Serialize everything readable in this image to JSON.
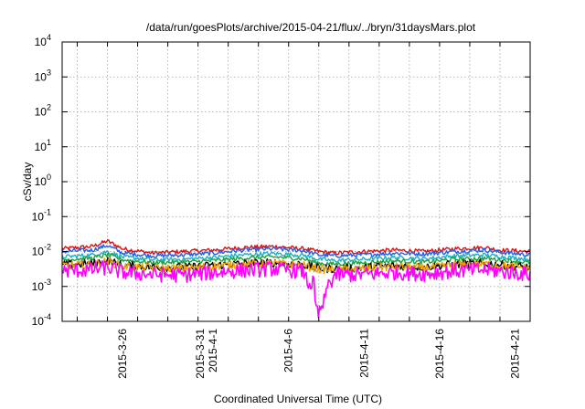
{
  "chart_data": {
    "type": "line",
    "title": "/data/run/goesPlots/archive/2015-04-21/flux/../bryn/31daysMars.plot",
    "xlabel": "Coordinated Universal Time (UTC)",
    "ylabel": "cSv/day",
    "yscale": "log",
    "ylim": [
      0.0001,
      10000
    ],
    "xlim": [
      "2015-03-22",
      "2015-04-22"
    ],
    "grid": true,
    "x_ticks": [
      "2015-3-26",
      "2015-3-31",
      "2015-4-1",
      "2015-4-6",
      "2015-4-11",
      "2015-4-16",
      "2015-4-21"
    ],
    "y_ticks": [
      {
        "value": 0.0001,
        "base": "10",
        "exp": "-4"
      },
      {
        "value": 0.001,
        "base": "10",
        "exp": "-3"
      },
      {
        "value": 0.01,
        "base": "10",
        "exp": "-2"
      },
      {
        "value": 0.1,
        "base": "10",
        "exp": "-1"
      },
      {
        "value": 1,
        "base": "10",
        "exp": "0"
      },
      {
        "value": 10,
        "base": "10",
        "exp": "1"
      },
      {
        "value": 100,
        "base": "10",
        "exp": "2"
      },
      {
        "value": 1000,
        "base": "10",
        "exp": "3"
      },
      {
        "value": 10000,
        "base": "10",
        "exp": "4"
      }
    ],
    "x": [
      "2015-03-22",
      "2015-03-24",
      "2015-03-25",
      "2015-03-26",
      "2015-03-28",
      "2015-03-30",
      "2015-04-01",
      "2015-04-03",
      "2015-04-05",
      "2015-04-07",
      "2015-04-08",
      "2015-04-09",
      "2015-04-11",
      "2015-04-13",
      "2015-04-15",
      "2015-04-17",
      "2015-04-19",
      "2015-04-20",
      "2015-04-22"
    ],
    "series": [
      {
        "color": "#e01010",
        "values": [
          0.012,
          0.014,
          0.02,
          0.012,
          0.009,
          0.01,
          0.011,
          0.013,
          0.014,
          0.012,
          0.01,
          0.009,
          0.01,
          0.011,
          0.01,
          0.012,
          0.013,
          0.011,
          0.01
        ]
      },
      {
        "color": "#2060f0",
        "values": [
          0.01,
          0.011,
          0.015,
          0.009,
          0.0075,
          0.008,
          0.009,
          0.011,
          0.012,
          0.0105,
          0.008,
          0.0075,
          0.008,
          0.009,
          0.0085,
          0.01,
          0.011,
          0.0095,
          0.008
        ]
      },
      {
        "color": "#20b0c0",
        "values": [
          0.007,
          0.008,
          0.01,
          0.007,
          0.0058,
          0.006,
          0.0068,
          0.008,
          0.0088,
          0.0078,
          0.006,
          0.0055,
          0.006,
          0.0068,
          0.0062,
          0.0075,
          0.008,
          0.0072,
          0.006
        ]
      },
      {
        "color": "#20a040",
        "values": [
          0.0058,
          0.0065,
          0.008,
          0.0058,
          0.0048,
          0.005,
          0.0055,
          0.0064,
          0.007,
          0.0062,
          0.0046,
          0.0044,
          0.0048,
          0.0054,
          0.005,
          0.006,
          0.0064,
          0.0058,
          0.0048
        ]
      },
      {
        "color": "#000000",
        "values": [
          0.0042,
          0.0045,
          0.0055,
          0.004,
          0.0036,
          0.0035,
          0.004,
          0.0045,
          0.0048,
          0.0042,
          0.0033,
          0.0032,
          0.0035,
          0.0039,
          0.0036,
          0.0043,
          0.0046,
          0.0042,
          0.0035
        ]
      },
      {
        "color": "#f0a000",
        "values": [
          0.004,
          0.0043,
          0.0052,
          0.0038,
          0.0034,
          0.0033,
          0.0038,
          0.0043,
          0.0046,
          0.004,
          0.0031,
          0.003,
          0.0033,
          0.0037,
          0.0034,
          0.0041,
          0.0044,
          0.004,
          0.0033
        ]
      },
      {
        "color": "#ff00ff",
        "values": [
          0.0028,
          0.003,
          0.0035,
          0.0025,
          0.0022,
          0.0021,
          0.0025,
          0.0029,
          0.0032,
          0.0027,
          0.00015,
          0.0021,
          0.0022,
          0.0025,
          0.0023,
          0.0028,
          0.003,
          0.0027,
          0.0022
        ]
      }
    ]
  }
}
